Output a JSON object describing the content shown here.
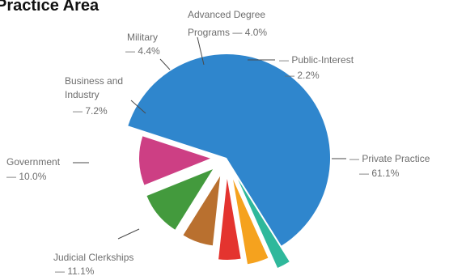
{
  "chart_data": {
    "type": "pie",
    "title": "Practice Area",
    "slices": [
      {
        "label": "Private Practice",
        "value": 61.1,
        "value_label": "61.1%",
        "color": "#2f86cd"
      },
      {
        "label": "Judicial Clerkships",
        "value": 11.1,
        "value_label": "11.1%",
        "color": "#cd3f84"
      },
      {
        "label": "Government",
        "value": 10.0,
        "value_label": "10.0%",
        "color": "#439a3d"
      },
      {
        "label": "Business and Industry",
        "value": 7.2,
        "value_label": "7.2%",
        "color": "#b9702f"
      },
      {
        "label": "Military",
        "value": 4.4,
        "value_label": "4.4%",
        "color": "#e4342f"
      },
      {
        "label": "Advanced Degree Programs",
        "value": 4.0,
        "value_label": "4.0%",
        "color": "#f5a21e"
      },
      {
        "label": "Public-Interest",
        "value": 2.2,
        "value_label": "2.2%",
        "color": "#2fb89b"
      }
    ],
    "legend": "none"
  }
}
